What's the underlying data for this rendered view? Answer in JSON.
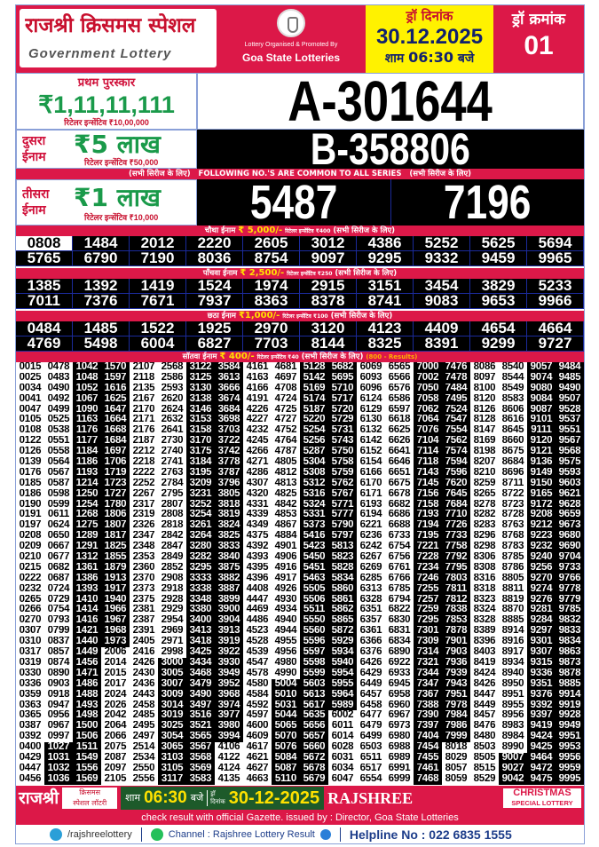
{
  "header": {
    "title_hindi": "राजश्री क्रिसमस स्पेशल",
    "title_english": "Government Lottery",
    "organised_by": "Lottery Organised & Promoted By",
    "organiser": "Goa State Lotteries",
    "draw_date_label": "ड्रॉ दिनांक",
    "draw_date": "30.12.2025",
    "draw_time_prefix": "शाम",
    "draw_time": "06:30",
    "draw_time_suffix": "बजे",
    "draw_no_label": "ड्रॉ क्रमांक",
    "draw_no": "01"
  },
  "first_prize": {
    "label": "प्रथम पुरस्कार",
    "amount": "₹1,11,11,111",
    "incentive": "रिटेलर इन्सेंटिव ₹10,00,000",
    "number": "A-301644"
  },
  "second_prize": {
    "label_line1": "दुसरा",
    "label_line2": "ईनाम",
    "amount": "₹5 लाख",
    "incentive": "रिटेलर इन्सेंटिव ₹50,000",
    "number": "B-358806"
  },
  "common_strip": {
    "left": "(सभी सिरीज के लिए)",
    "center": "FOLLOWING NO.'S ARE COMMON TO ALL SERIES",
    "right": "(सभी सिरीज के लिए)"
  },
  "third_prize": {
    "label_line1": "तीसरा",
    "label_line2": "ईनाम",
    "amount": "₹1 लाख",
    "incentive": "रिटेलर इन्सेंटिव ₹10,000",
    "numbers": [
      "5487",
      "7196"
    ]
  },
  "fourth_prize": {
    "label": "चौथा ईनाम",
    "amount": "₹ 5,000/-",
    "incentive": "रिटेलर इन्सेंटिव ₹400",
    "note": "(सभी सिरीज के लिए)",
    "numbers": [
      "0808",
      "1484",
      "2012",
      "2220",
      "2605",
      "3012",
      "4386",
      "5252",
      "5625",
      "5694",
      "5765",
      "6790",
      "7190",
      "8036",
      "8754",
      "9097",
      "9295",
      "9332",
      "9459",
      "9965"
    ]
  },
  "fifth_prize": {
    "label": "पाँचवा ईनाम",
    "amount": "₹ 2,500/-",
    "incentive": "रिटेलर इन्सेंटिव ₹250",
    "note": "(सभी सिरीज के लिए)",
    "numbers": [
      "1385",
      "1392",
      "1419",
      "1524",
      "1974",
      "2915",
      "3151",
      "3454",
      "3829",
      "5233",
      "7011",
      "7376",
      "7671",
      "7937",
      "8363",
      "8378",
      "8741",
      "9083",
      "9653",
      "9966"
    ]
  },
  "sixth_prize": {
    "label": "छठा ईनाम",
    "amount": "₹1,000/-",
    "incentive": "रिटेलर इन्सेंटिव ₹100",
    "note": "(सभी सिरीज के लिए)",
    "numbers": [
      "0484",
      "1485",
      "1522",
      "1925",
      "2970",
      "3120",
      "4123",
      "4409",
      "4654",
      "4664",
      "4769",
      "5498",
      "6004",
      "6827",
      "7703",
      "8144",
      "8325",
      "8391",
      "9299",
      "9727"
    ]
  },
  "seventh_prize": {
    "label": "सॉतवा ईनाम",
    "amount": "₹ 400/-",
    "incentive": "रिटेलर इन्सेंटिव ₹40",
    "note": "(सभी सिरीज के लिए)",
    "count_note": "(800 - Results)",
    "rows": [
      [
        "0015",
        "0478",
        "1042",
        "1570",
        "2107",
        "2568",
        "3122",
        "3584",
        "4161",
        "4681",
        "5128",
        "5682",
        "6069",
        "6565",
        "7000",
        "7476",
        "8086",
        "8540",
        "9057",
        "9484"
      ],
      [
        "0025",
        "0483",
        "1048",
        "1597",
        "2118",
        "2586",
        "3125",
        "3613",
        "4163",
        "4697",
        "5142",
        "5695",
        "6093",
        "6566",
        "7002",
        "7478",
        "8097",
        "8544",
        "9074",
        "9485"
      ],
      [
        "0034",
        "0490",
        "1052",
        "1616",
        "2135",
        "2593",
        "3130",
        "3666",
        "4166",
        "4708",
        "5169",
        "5710",
        "6096",
        "6576",
        "7050",
        "7484",
        "8100",
        "8549",
        "9080",
        "9490"
      ],
      [
        "0041",
        "0492",
        "1067",
        "1625",
        "2167",
        "2620",
        "3138",
        "3674",
        "4191",
        "4724",
        "5174",
        "5717",
        "6124",
        "6586",
        "7058",
        "7495",
        "8120",
        "8583",
        "9084",
        "9507"
      ],
      [
        "0047",
        "0499",
        "1090",
        "1647",
        "2170",
        "2624",
        "3146",
        "3684",
        "4226",
        "4725",
        "5187",
        "5720",
        "6129",
        "6597",
        "7062",
        "7524",
        "8126",
        "8606",
        "9087",
        "9528"
      ],
      [
        "0105",
        "0525",
        "1163",
        "1664",
        "2171",
        "2632",
        "3153",
        "3698",
        "4227",
        "4727",
        "5220",
        "5729",
        "6130",
        "6618",
        "7064",
        "7547",
        "8128",
        "8616",
        "9101",
        "9537"
      ],
      [
        "0108",
        "0538",
        "1176",
        "1668",
        "2176",
        "2641",
        "3158",
        "3703",
        "4232",
        "4752",
        "5254",
        "5731",
        "6132",
        "6625",
        "7076",
        "7554",
        "8147",
        "8645",
        "9111",
        "9551"
      ],
      [
        "0122",
        "0551",
        "1177",
        "1684",
        "2187",
        "2730",
        "3170",
        "3722",
        "4245",
        "4764",
        "5256",
        "5743",
        "6142",
        "6626",
        "7104",
        "7562",
        "8169",
        "8660",
        "9120",
        "9567"
      ],
      [
        "0126",
        "0558",
        "1184",
        "1697",
        "2212",
        "2740",
        "3175",
        "3742",
        "4266",
        "4787",
        "5287",
        "5750",
        "6152",
        "6641",
        "7114",
        "7574",
        "8198",
        "8675",
        "9121",
        "9568"
      ],
      [
        "0139",
        "0564",
        "1186",
        "1706",
        "2218",
        "2741",
        "3184",
        "3778",
        "4271",
        "4805",
        "5304",
        "5758",
        "6154",
        "6646",
        "7118",
        "7594",
        "8207",
        "8684",
        "9136",
        "9575"
      ],
      [
        "0176",
        "0567",
        "1193",
        "1719",
        "2222",
        "2763",
        "3195",
        "3787",
        "4286",
        "4812",
        "5308",
        "5759",
        "6166",
        "6651",
        "7143",
        "7596",
        "8210",
        "8696",
        "9149",
        "9593"
      ],
      [
        "0185",
        "0587",
        "1214",
        "1723",
        "2252",
        "2784",
        "3209",
        "3796",
        "4307",
        "4813",
        "5312",
        "5762",
        "6170",
        "6675",
        "7145",
        "7620",
        "8259",
        "8711",
        "9150",
        "9603"
      ],
      [
        "0186",
        "0598",
        "1250",
        "1727",
        "2267",
        "2795",
        "3231",
        "3805",
        "4320",
        "4825",
        "5316",
        "5767",
        "6171",
        "6678",
        "7156",
        "7645",
        "8265",
        "8722",
        "9165",
        "9621"
      ],
      [
        "0190",
        "0599",
        "1254",
        "1780",
        "2317",
        "2807",
        "3252",
        "3818",
        "4331",
        "4842",
        "5324",
        "5771",
        "6193",
        "6682",
        "7158",
        "7684",
        "8278",
        "8723",
        "9172",
        "9628"
      ],
      [
        "0191",
        "0611",
        "1268",
        "1806",
        "2319",
        "2808",
        "3254",
        "3819",
        "4339",
        "4853",
        "5331",
        "5777",
        "6194",
        "6686",
        "7193",
        "7710",
        "8282",
        "8728",
        "9208",
        "9659"
      ],
      [
        "0197",
        "0624",
        "1275",
        "1807",
        "2326",
        "2818",
        "3261",
        "3824",
        "4349",
        "4867",
        "5373",
        "5790",
        "6221",
        "6688",
        "7194",
        "7726",
        "8283",
        "8763",
        "9212",
        "9673"
      ],
      [
        "0208",
        "0650",
        "1289",
        "1817",
        "2347",
        "2842",
        "3264",
        "3825",
        "4375",
        "4884",
        "5416",
        "5797",
        "6236",
        "6733",
        "7195",
        "7733",
        "8296",
        "8768",
        "9223",
        "9680"
      ],
      [
        "0209",
        "0667",
        "1291",
        "1825",
        "2348",
        "2847",
        "3280",
        "3833",
        "4392",
        "4901",
        "5423",
        "5813",
        "6242",
        "6754",
        "7221",
        "7758",
        "8298",
        "8783",
        "9232",
        "9690"
      ],
      [
        "0210",
        "0677",
        "1312",
        "1855",
        "2353",
        "2849",
        "3282",
        "3840",
        "4393",
        "4906",
        "5450",
        "5823",
        "6267",
        "6756",
        "7228",
        "7792",
        "8306",
        "8785",
        "9240",
        "9704"
      ],
      [
        "0215",
        "0682",
        "1361",
        "1879",
        "2360",
        "2852",
        "3295",
        "3875",
        "4395",
        "4916",
        "5451",
        "5828",
        "6269",
        "6761",
        "7234",
        "7795",
        "8308",
        "8786",
        "9256",
        "9733"
      ],
      [
        "0222",
        "0687",
        "1386",
        "1913",
        "2370",
        "2908",
        "3333",
        "3882",
        "4396",
        "4917",
        "5463",
        "5834",
        "6285",
        "6766",
        "7246",
        "7803",
        "8316",
        "8805",
        "9270",
        "9766"
      ],
      [
        "0232",
        "0724",
        "1393",
        "1917",
        "2373",
        "2918",
        "3338",
        "3887",
        "4408",
        "4926",
        "5505",
        "5860",
        "6313",
        "6785",
        "7255",
        "7811",
        "8318",
        "8811",
        "9274",
        "9778"
      ],
      [
        "0265",
        "0729",
        "1410",
        "1940",
        "2375",
        "2928",
        "3348",
        "3899",
        "4447",
        "4930",
        "5506",
        "5861",
        "6328",
        "6794",
        "7257",
        "7812",
        "8323",
        "8819",
        "9276",
        "9779"
      ],
      [
        "0266",
        "0754",
        "1414",
        "1966",
        "2381",
        "2929",
        "3380",
        "3900",
        "4469",
        "4934",
        "5511",
        "5862",
        "6351",
        "6822",
        "7259",
        "7838",
        "8324",
        "8870",
        "9281",
        "9785"
      ],
      [
        "0270",
        "0793",
        "1416",
        "1967",
        "2387",
        "2954",
        "3400",
        "3904",
        "4486",
        "4940",
        "5550",
        "5865",
        "6357",
        "6830",
        "7295",
        "7853",
        "8328",
        "8885",
        "9284",
        "9832"
      ],
      [
        "0307",
        "0799",
        "1421",
        "1968",
        "2391",
        "2969",
        "3413",
        "3913",
        "4523",
        "4944",
        "5560",
        "5872",
        "6361",
        "6831",
        "7301",
        "7878",
        "8389",
        "8914",
        "9297",
        "9833"
      ],
      [
        "0310",
        "0837",
        "1440",
        "1973",
        "2405",
        "2971",
        "3418",
        "3919",
        "4528",
        "4955",
        "5596",
        "5929",
        "6366",
        "6834",
        "7309",
        "7901",
        "8396",
        "8916",
        "9301",
        "9834"
      ],
      [
        "0317",
        "0857",
        "1449",
        "2006",
        "2416",
        "2998",
        "3425",
        "3922",
        "4539",
        "4956",
        "5597",
        "5934",
        "6376",
        "6890",
        "7314",
        "7903",
        "8403",
        "8917",
        "9307",
        "9863"
      ],
      [
        "0319",
        "0874",
        "1456",
        "2014",
        "2426",
        "3000",
        "3434",
        "3930",
        "4547",
        "4980",
        "5598",
        "5940",
        "6426",
        "6922",
        "7321",
        "7936",
        "8419",
        "8934",
        "9315",
        "9873"
      ],
      [
        "0330",
        "0890",
        "1471",
        "2015",
        "2430",
        "3005",
        "3468",
        "3949",
        "4578",
        "4990",
        "5599",
        "5954",
        "6429",
        "6933",
        "7344",
        "7939",
        "8424",
        "8940",
        "9336",
        "9878"
      ],
      [
        "0336",
        "0903",
        "1486",
        "2017",
        "2436",
        "3007",
        "3479",
        "3952",
        "4580",
        "5004",
        "5603",
        "5955",
        "6449",
        "6945",
        "7347",
        "7943",
        "8426",
        "8950",
        "9351",
        "9885"
      ],
      [
        "0359",
        "0918",
        "1488",
        "2024",
        "2443",
        "3009",
        "3490",
        "3968",
        "4584",
        "5010",
        "5613",
        "5964",
        "6457",
        "6958",
        "7367",
        "7951",
        "8447",
        "8951",
        "9376",
        "9914"
      ],
      [
        "0363",
        "0947",
        "1493",
        "2026",
        "2458",
        "3014",
        "3497",
        "3974",
        "4592",
        "5031",
        "5617",
        "5989",
        "6458",
        "6960",
        "7388",
        "7978",
        "8449",
        "8955",
        "9392",
        "9919"
      ],
      [
        "0365",
        "0956",
        "1498",
        "2042",
        "2485",
        "3019",
        "3516",
        "3977",
        "4597",
        "5044",
        "5635",
        "6002",
        "6477",
        "6967",
        "7390",
        "7984",
        "8457",
        "8956",
        "9397",
        "9928"
      ],
      [
        "0387",
        "0967",
        "1500",
        "2064",
        "2495",
        "3025",
        "3521",
        "3980",
        "4600",
        "5065",
        "5656",
        "6011",
        "6479",
        "6973",
        "7397",
        "7986",
        "8476",
        "8983",
        "9419",
        "9949"
      ],
      [
        "0392",
        "0997",
        "1506",
        "2066",
        "2497",
        "3054",
        "3565",
        "3994",
        "4609",
        "5070",
        "5657",
        "6014",
        "6499",
        "6980",
        "7404",
        "7999",
        "8480",
        "8984",
        "9424",
        "9951"
      ],
      [
        "0400",
        "1027",
        "1511",
        "2075",
        "2514",
        "3065",
        "3567",
        "4106",
        "4617",
        "5076",
        "5660",
        "6028",
        "6503",
        "6988",
        "7454",
        "8018",
        "8503",
        "8990",
        "9425",
        "9953"
      ],
      [
        "0429",
        "1031",
        "1549",
        "2087",
        "2534",
        "3103",
        "3568",
        "4122",
        "4621",
        "5084",
        "5672",
        "6031",
        "6511",
        "6989",
        "7455",
        "8029",
        "8505",
        "9007",
        "9464",
        "9956"
      ],
      [
        "0447",
        "1032",
        "1556",
        "2097",
        "2550",
        "3105",
        "3569",
        "4124",
        "4627",
        "5087",
        "5678",
        "6034",
        "6517",
        "6991",
        "7461",
        "8057",
        "8515",
        "9027",
        "9472",
        "9959"
      ],
      [
        "0456",
        "1036",
        "1569",
        "2105",
        "2556",
        "3117",
        "3583",
        "4135",
        "4663",
        "5110",
        "5679",
        "6047",
        "6554",
        "6999",
        "7468",
        "8059",
        "8529",
        "9042",
        "9475",
        "9995"
      ]
    ]
  },
  "footer": {
    "brand_hindi": "राजश्री",
    "sub_hindi_1": "क्रिसमस",
    "sub_hindi_2": "स्पेशल लॉटरी",
    "time_prefix": "शाम",
    "time": "06:30",
    "time_suffix": "बजे",
    "date_label_1": "ड्रॉ",
    "date_label_2": "दिनांक",
    "date": "30-12-2025",
    "brand_english": "RAJSHREE",
    "christmas": "CHRISTMAS",
    "special": "SPECIAL LOTTERY",
    "gazette": "check result with official Gazette. issued by : Director, Goa State Lotteries",
    "telegram": "/rajshreelottery",
    "whatsapp": "Channel : Rajshree Lottery Result",
    "helpline": "Helpline No : 022 6835 1555"
  },
  "colors": {
    "brand_red": "#dc1848",
    "date_yellow": "#fff200",
    "prize_green": "#1a9a4a",
    "navy": "#10206e"
  }
}
